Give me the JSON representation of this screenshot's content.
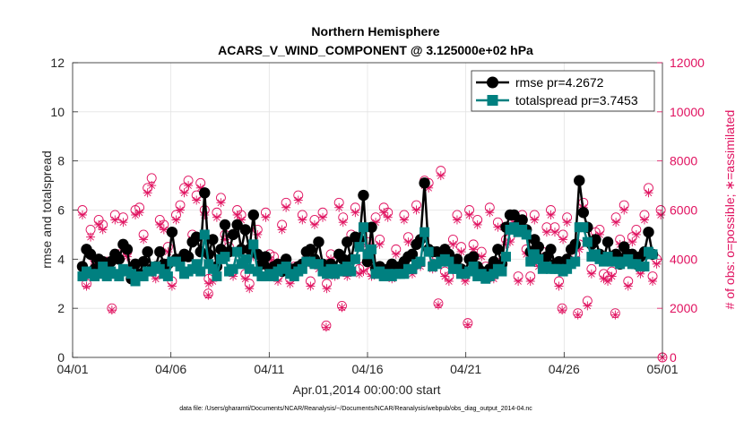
{
  "chart_data": {
    "type": "line",
    "title_line1": "Northern Hemisphere",
    "title_line2": "ACARS_V_WIND_COMPONENT @ 3.125000e+02 hPa",
    "xlabel": "Apr.01,2014 00:00:00 start",
    "ylabel_left": "rmse and totalspread",
    "ylabel_right": "# of obs: o=possible; ∗=assimilated",
    "x_ticks": [
      "04/01",
      "04/06",
      "04/11",
      "04/16",
      "04/21",
      "04/26",
      "05/01"
    ],
    "y_left_ticks": [
      "0",
      "2",
      "4",
      "6",
      "8",
      "10",
      "12"
    ],
    "y_right_ticks": [
      "0",
      "2000",
      "4000",
      "6000",
      "8000",
      "10000",
      "12000"
    ],
    "xlim_days": [
      0,
      30
    ],
    "ylim_left": [
      0,
      12
    ],
    "ylim_right": [
      0,
      12000
    ],
    "footer": "data file: /Users/gharamti/Documents/NCAR/Reanalysis/~/Documents/NCAR/Reanalysis/webpub/obs_diag_output_2014-04.nc",
    "colors": {
      "rmse": "#000000",
      "spread": "#008080",
      "obs": "#e0115f"
    },
    "series": [
      {
        "name": "rmse pr=4.2672",
        "key": "rmse",
        "values": [
          3.7,
          4.4,
          4.2,
          3.6,
          4.0,
          3.9,
          3.6,
          3.9,
          4.2,
          4.0,
          4.6,
          4.4,
          3.2,
          3.8,
          3.4,
          3.9,
          4.3,
          3.6,
          3.7,
          4.3,
          3.8,
          3.8,
          5.1,
          4.0,
          4.0,
          4.2,
          4.1,
          4.7,
          4.9,
          4.3,
          6.7,
          4.2,
          4.8,
          3.7,
          4.4,
          5.4,
          4.3,
          5.0,
          5.4,
          4.4,
          5.2,
          4.4,
          5.8,
          4.2,
          3.8,
          4.1,
          3.6,
          3.7,
          3.8,
          3.5,
          4.0,
          3.6,
          3.6,
          3.7,
          3.8,
          4.3,
          4.4,
          4.0,
          4.7,
          3.8,
          3.6,
          3.8,
          3.6,
          4.2,
          4.0,
          4.7,
          4.0,
          4.9,
          4.8,
          6.6,
          3.9,
          5.3,
          3.6,
          3.7,
          3.4,
          3.6,
          3.8,
          3.5,
          3.7,
          3.9,
          4.1,
          4.2,
          4.6,
          4.8,
          7.1,
          4.4,
          4.3,
          4.3,
          4.2,
          4.4,
          4.2,
          3.8,
          4.0,
          3.6,
          3.5,
          4.0,
          4.1,
          3.7,
          3.5,
          3.4,
          3.6,
          3.9,
          4.4,
          3.8,
          5.3,
          5.8,
          5.8,
          5.4,
          5.6,
          5.2,
          4.3,
          4.8,
          4.5,
          3.9,
          4.1,
          4.4,
          3.8,
          3.9,
          3.6,
          4.0,
          4.4,
          4.6,
          7.2,
          5.9,
          5.3,
          4.6,
          4.8,
          4.2,
          4.0,
          4.7,
          4.0,
          4.2,
          3.8,
          4.5,
          4.2,
          4.2,
          3.8,
          4.1,
          4.3,
          5.1,
          4.2
        ]
      },
      {
        "name": "totalspread pr=3.7453",
        "key": "spread",
        "values": [
          3.3,
          3.5,
          3.4,
          3.3,
          3.4,
          3.7,
          3.3,
          3.5,
          3.4,
          3.3,
          3.6,
          3.5,
          3.4,
          3.1,
          3.3,
          3.3,
          3.5,
          3.5,
          3.7,
          3.6,
          3.4,
          3.3,
          3.9,
          3.9,
          3.7,
          3.4,
          3.5,
          3.6,
          3.8,
          3.5,
          5.0,
          3.8,
          3.6,
          3.3,
          4.0,
          4.1,
          3.5,
          3.6,
          4.3,
          3.8,
          4.0,
          3.6,
          4.6,
          3.5,
          3.3,
          3.3,
          3.4,
          3.3,
          3.5,
          3.6,
          3.7,
          3.4,
          3.3,
          3.5,
          3.6,
          3.9,
          3.9,
          3.8,
          3.8,
          3.5,
          3.4,
          3.6,
          3.4,
          3.6,
          3.5,
          3.7,
          3.5,
          4.0,
          4.5,
          5.3,
          4.2,
          4.4,
          3.4,
          3.5,
          3.3,
          3.4,
          3.3,
          3.4,
          3.4,
          3.4,
          3.6,
          3.6,
          3.8,
          3.9,
          5.1,
          4.3,
          3.7,
          3.8,
          3.9,
          4.0,
          3.9,
          3.6,
          3.6,
          3.4,
          3.4,
          3.5,
          3.7,
          3.3,
          3.4,
          3.2,
          3.3,
          3.4,
          3.6,
          3.5,
          4.1,
          5.2,
          5.3,
          5.1,
          5.2,
          5.0,
          3.9,
          4.2,
          4.0,
          3.6,
          3.7,
          3.6,
          3.6,
          3.6,
          3.5,
          3.6,
          3.8,
          3.9,
          5.3,
          5.3,
          4.7,
          4.1,
          4.2,
          4.0,
          3.9,
          4.1,
          3.9,
          3.9,
          3.8,
          3.9,
          4.0,
          3.8,
          3.8,
          3.7,
          3.7,
          4.3,
          4.2
        ]
      },
      {
        "name": "possible",
        "key": "possible",
        "values": [
          6000,
          3000,
          5200,
          4000,
          5600,
          5400,
          3900,
          3500,
          5800,
          4200,
          5700,
          4300,
          3600,
          6000,
          6100,
          5000,
          6900,
          7300,
          3400,
          5600,
          5400,
          4500,
          3100,
          5800,
          6200,
          6900,
          7200,
          5000,
          6600,
          7100,
          6000,
          3200,
          3300,
          5900,
          6500,
          5000,
          4500,
          3500,
          6000,
          5800,
          3400,
          3000,
          4300,
          5200,
          3900,
          5900,
          4200,
          4100,
          3300,
          5400,
          6300,
          3200,
          3700,
          6600,
          5800,
          4000,
          3100,
          5600,
          3800,
          5900,
          3000,
          4200,
          3500,
          6300,
          5700,
          3500,
          5000,
          6100,
          3600,
          3700,
          4700,
          3500,
          5700,
          4800,
          6100,
          5900,
          3400,
          4400,
          3700,
          5800,
          4900,
          3600,
          6200,
          3900,
          7200,
          7100,
          3800,
          4100,
          7600,
          3500,
          3300,
          4800,
          5800,
          4500,
          3300,
          6000,
          4600,
          5600,
          4300,
          3700,
          6100,
          3400,
          5500,
          3900,
          4800,
          4900,
          5700,
          3300,
          5800,
          4400,
          3300,
          5800,
          3900,
          4300,
          5300,
          6000,
          5300,
          3100,
          5000,
          5700,
          4100,
          4200,
          4600,
          6300,
          2300,
          3600,
          5100,
          5200,
          3400,
          3300,
          3500,
          5700,
          4800,
          6200,
          3100,
          4900,
          5200,
          3600,
          5800,
          6900,
          3300,
          4000,
          6000
        ]
      },
      {
        "name": "assimilated",
        "key": "assimilated",
        "values": [
          5800,
          2900,
          4900,
          3800,
          5400,
          5200,
          3700,
          3400,
          5600,
          4000,
          5500,
          4100,
          3400,
          5800,
          5900,
          4800,
          6700,
          7000,
          3200,
          5400,
          5200,
          4300,
          2900,
          5600,
          6000,
          6700,
          7000,
          4800,
          6400,
          6900,
          5800,
          3000,
          3100,
          5700,
          6300,
          4800,
          4300,
          3300,
          5800,
          5600,
          3200,
          2800,
          4100,
          5000,
          3700,
          5700,
          4000,
          3900,
          3100,
          5200,
          6100,
          3000,
          3500,
          6400,
          5600,
          3800,
          2900,
          5400,
          3600,
          5700,
          2800,
          4000,
          3300,
          6100,
          5500,
          3300,
          4800,
          5900,
          3400,
          3500,
          4500,
          3300,
          5500,
          4600,
          5900,
          5700,
          3200,
          4200,
          3500,
          5600,
          4700,
          3400,
          6000,
          3700,
          7000,
          6900,
          3600,
          3900,
          7400,
          3300,
          3100,
          4600,
          5600,
          4300,
          3100,
          5800,
          4400,
          5400,
          4100,
          3500,
          5900,
          3200,
          5300,
          3700,
          4600,
          4700,
          5500,
          3100,
          5600,
          4200,
          3100,
          5600,
          3700,
          4100,
          5100,
          5800,
          5100,
          2900,
          4800,
          5500,
          3900,
          4000,
          4400,
          6100,
          2100,
          3400,
          4900,
          5000,
          3200,
          3100,
          3300,
          5500,
          4600,
          6000,
          2900,
          4700,
          5000,
          3400,
          5600,
          6700,
          3100,
          3800,
          5800
        ]
      }
    ],
    "extra_possible": [
      {
        "x": 2.0,
        "y": 2000
      },
      {
        "x": 6.9,
        "y": 2600
      },
      {
        "x": 12.9,
        "y": 1300
      },
      {
        "x": 13.7,
        "y": 2100
      },
      {
        "x": 18.6,
        "y": 2200
      },
      {
        "x": 20.1,
        "y": 1400
      },
      {
        "x": 24.9,
        "y": 2000
      },
      {
        "x": 25.7,
        "y": 1800
      },
      {
        "x": 27.6,
        "y": 1800
      }
    ],
    "end_point": {
      "x": 30.0,
      "y": 0
    }
  }
}
